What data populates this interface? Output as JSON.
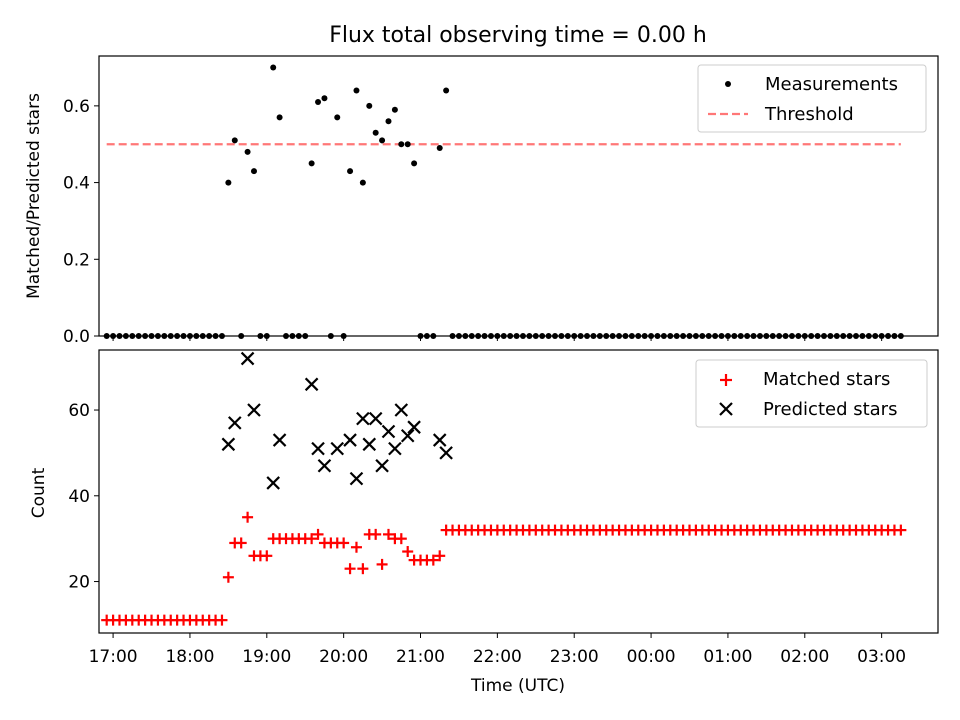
{
  "chart_data": [
    {
      "type": "scatter",
      "title": "Flux total observing time = 0.00 h",
      "xlabel": "",
      "ylabel": "Matched/Predicted stars",
      "xlim": [
        "16:49",
        "03:44"
      ],
      "ylim": [
        0,
        0.73
      ],
      "yticks": [
        0.0,
        0.2,
        0.4,
        0.6
      ],
      "yticklabels": [
        "0.0",
        "0.2",
        "0.4",
        "0.6"
      ],
      "threshold": {
        "y": 0.5,
        "x_start": "16:55",
        "x_end": "03:15",
        "color": "#ff7777",
        "style": "dashed"
      },
      "legend": {
        "position": "top-right",
        "entries": [
          "Measurements",
          "Threshold"
        ]
      },
      "series": [
        {
          "name": "Measurements",
          "color": "#000000",
          "marker": "dot",
          "x": [
            "16:55",
            "17:00",
            "17:05",
            "17:10",
            "17:15",
            "17:20",
            "17:25",
            "17:30",
            "17:35",
            "17:40",
            "17:45",
            "17:50",
            "17:55",
            "18:00",
            "18:05",
            "18:10",
            "18:15",
            "18:20",
            "18:25",
            "18:30",
            "18:35",
            "18:40",
            "18:45",
            "18:50",
            "18:55",
            "19:00",
            "19:05",
            "19:10",
            "19:15",
            "19:20",
            "19:25",
            "19:30",
            "19:35",
            "19:40",
            "19:45",
            "19:50",
            "19:55",
            "20:00",
            "20:05",
            "20:10",
            "20:15",
            "20:20",
            "20:25",
            "20:30",
            "20:35",
            "20:40",
            "20:45",
            "20:50",
            "20:55",
            "21:00",
            "21:05",
            "21:10",
            "21:15",
            "21:20",
            "21:25",
            "21:30",
            "21:35",
            "21:40",
            "21:45",
            "21:50",
            "21:55",
            "22:00",
            "22:05",
            "22:10",
            "22:15",
            "22:20",
            "22:25",
            "22:30",
            "22:35",
            "22:40",
            "22:45",
            "22:50",
            "22:55",
            "23:00",
            "23:05",
            "23:10",
            "23:15",
            "23:20",
            "23:25",
            "23:30",
            "23:35",
            "23:40",
            "23:45",
            "23:50",
            "23:55",
            "00:00",
            "00:05",
            "00:10",
            "00:15",
            "00:20",
            "00:25",
            "00:30",
            "00:35",
            "00:40",
            "00:45",
            "00:50",
            "00:55",
            "01:00",
            "01:05",
            "01:10",
            "01:15",
            "01:20",
            "01:25",
            "01:30",
            "01:35",
            "01:40",
            "01:45",
            "01:50",
            "01:55",
            "02:00",
            "02:05",
            "02:10",
            "02:15",
            "02:20",
            "02:25",
            "02:30",
            "02:35",
            "02:40",
            "02:45",
            "02:50",
            "02:55",
            "03:00",
            "03:05",
            "03:10",
            "03:15"
          ],
          "y": [
            0,
            0,
            0,
            0,
            0,
            0,
            0,
            0,
            0,
            0,
            0,
            0,
            0,
            0,
            0,
            0,
            0,
            0,
            0,
            0.4,
            0.51,
            0,
            0.48,
            0.43,
            0,
            0,
            0.7,
            0.57,
            0,
            0,
            0,
            0,
            0.45,
            0.61,
            0.62,
            0,
            0.57,
            0,
            0.43,
            0.64,
            0.4,
            0.6,
            0.53,
            0.51,
            0.56,
            0.59,
            0.5,
            0.5,
            0.45,
            0,
            0,
            0,
            0.49,
            0.64,
            0,
            0,
            0,
            0,
            0,
            0,
            0,
            0,
            0,
            0,
            0,
            0,
            0,
            0,
            0,
            0,
            0,
            0,
            0,
            0,
            0,
            0,
            0,
            0,
            0,
            0,
            0,
            0,
            0,
            0,
            0,
            0,
            0,
            0,
            0,
            0,
            0,
            0,
            0,
            0,
            0,
            0,
            0,
            0,
            0,
            0,
            0,
            0,
            0,
            0,
            0,
            0,
            0,
            0,
            0,
            0,
            0,
            0,
            0,
            0,
            0,
            0,
            0,
            0,
            0,
            0,
            0,
            0,
            0,
            0,
            0
          ]
        }
      ]
    },
    {
      "type": "scatter",
      "title": "",
      "xlabel": "Time (UTC)",
      "ylabel": "Count",
      "xlim": [
        "16:49",
        "03:44"
      ],
      "ylim": [
        8,
        74
      ],
      "yticks": [
        20,
        40,
        60
      ],
      "yticklabels": [
        "20",
        "40",
        "60"
      ],
      "xticks": [
        "17:00",
        "18:00",
        "19:00",
        "20:00",
        "21:00",
        "22:00",
        "23:00",
        "00:00",
        "01:00",
        "02:00",
        "03:00"
      ],
      "xticklabels": [
        "17:00",
        "18:00",
        "19:00",
        "20:00",
        "21:00",
        "22:00",
        "23:00",
        "00:00",
        "01:00",
        "02:00",
        "03:00"
      ],
      "legend": {
        "position": "top-right",
        "entries": [
          "Matched stars",
          "Predicted stars"
        ]
      },
      "series": [
        {
          "name": "Matched stars",
          "color": "#ff0000",
          "marker": "plus",
          "x": [
            "16:55",
            "17:00",
            "17:05",
            "17:10",
            "17:15",
            "17:20",
            "17:25",
            "17:30",
            "17:35",
            "17:40",
            "17:45",
            "17:50",
            "17:55",
            "18:00",
            "18:05",
            "18:10",
            "18:15",
            "18:20",
            "18:25",
            "18:30",
            "18:35",
            "18:40",
            "18:45",
            "18:50",
            "18:55",
            "19:00",
            "19:05",
            "19:10",
            "19:15",
            "19:20",
            "19:25",
            "19:30",
            "19:35",
            "19:40",
            "19:45",
            "19:50",
            "19:55",
            "20:00",
            "20:05",
            "20:10",
            "20:15",
            "20:20",
            "20:25",
            "20:30",
            "20:35",
            "20:40",
            "20:45",
            "20:50",
            "20:55",
            "21:00",
            "21:05",
            "21:10",
            "21:15",
            "21:20",
            "21:25",
            "21:30",
            "21:35",
            "21:40",
            "21:45",
            "21:50",
            "21:55",
            "22:00",
            "22:05",
            "22:10",
            "22:15",
            "22:20",
            "22:25",
            "22:30",
            "22:35",
            "22:40",
            "22:45",
            "22:50",
            "22:55",
            "23:00",
            "23:05",
            "23:10",
            "23:15",
            "23:20",
            "23:25",
            "23:30",
            "23:35",
            "23:40",
            "23:45",
            "23:50",
            "23:55",
            "00:00",
            "00:05",
            "00:10",
            "00:15",
            "00:20",
            "00:25",
            "00:30",
            "00:35",
            "00:40",
            "00:45",
            "00:50",
            "00:55",
            "01:00",
            "01:05",
            "01:10",
            "01:15",
            "01:20",
            "01:25",
            "01:30",
            "01:35",
            "01:40",
            "01:45",
            "01:50",
            "01:55",
            "02:00",
            "02:05",
            "02:10",
            "02:15",
            "02:20",
            "02:25",
            "02:30",
            "02:35",
            "02:40",
            "02:45",
            "02:50",
            "02:55",
            "03:00",
            "03:05",
            "03:10",
            "03:15"
          ],
          "y": [
            11,
            11,
            11,
            11,
            11,
            11,
            11,
            11,
            11,
            11,
            11,
            11,
            11,
            11,
            11,
            11,
            11,
            11,
            11,
            21,
            29,
            29,
            35,
            26,
            26,
            26,
            30,
            30,
            30,
            30,
            30,
            30,
            30,
            31,
            29,
            29,
            29,
            29,
            23,
            28,
            23,
            31,
            31,
            24,
            31,
            30,
            30,
            27,
            25,
            25,
            25,
            25,
            26,
            32,
            32,
            32,
            32,
            32,
            32,
            32,
            32,
            32,
            32,
            32,
            32,
            32,
            32,
            32,
            32,
            32,
            32,
            32,
            32,
            32,
            32,
            32,
            32,
            32,
            32,
            32,
            32,
            32,
            32,
            32,
            32,
            32,
            32,
            32,
            32,
            32,
            32,
            32,
            32,
            32,
            32,
            32,
            32,
            32,
            32,
            32,
            32,
            32,
            32,
            32,
            32,
            32,
            32,
            32,
            32,
            32,
            32,
            32,
            32,
            32,
            32,
            32,
            32,
            32,
            32,
            32,
            32,
            32,
            32,
            32,
            32
          ]
        },
        {
          "name": "Predicted stars",
          "color": "#000000",
          "marker": "x",
          "x": [
            "18:30",
            "18:35",
            "18:45",
            "18:50",
            "19:05",
            "19:10",
            "19:35",
            "19:40",
            "19:45",
            "19:55",
            "20:05",
            "20:10",
            "20:15",
            "20:20",
            "20:25",
            "20:30",
            "20:35",
            "20:40",
            "20:45",
            "20:50",
            "20:55",
            "21:15",
            "21:20"
          ],
          "y": [
            52,
            57,
            72,
            60,
            43,
            53,
            66,
            51,
            47,
            51,
            53,
            44,
            58,
            52,
            58,
            47,
            55,
            51,
            60,
            54,
            56,
            53,
            50
          ]
        }
      ]
    }
  ]
}
